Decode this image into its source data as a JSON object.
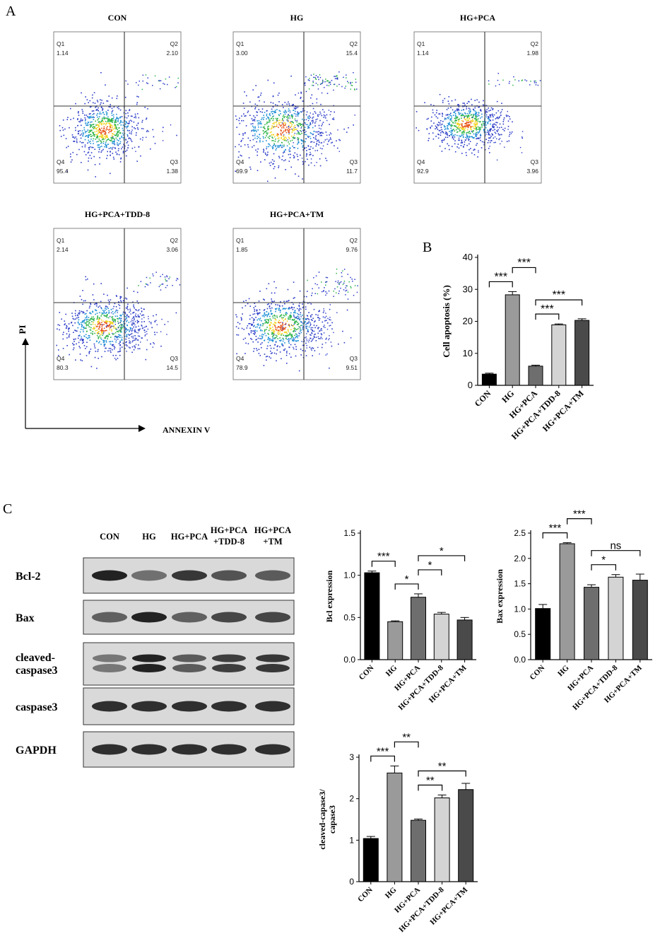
{
  "panel_letters": {
    "a": "A",
    "b": "B",
    "c": "C"
  },
  "flow": {
    "y_axis_label": "PI",
    "x_axis_label": "ANNEXIN V",
    "panels": [
      {
        "title": "CON",
        "q1": "1.14",
        "q2": "2.10",
        "q3": "1.38",
        "q4": "95.4",
        "q1_label": "Q1",
        "q2_label": "Q2",
        "q3_label": "Q3",
        "q4_label": "Q4"
      },
      {
        "title": "HG",
        "q1": "3.00",
        "q2": "15.4",
        "q3": "11.7",
        "q4": "69.9",
        "q1_label": "Q1",
        "q2_label": "Q2",
        "q3_label": "Q3",
        "q4_label": "Q4"
      },
      {
        "title": "HG+PCA",
        "q1": "1.14",
        "q2": "1.98",
        "q3": "3.96",
        "q4": "92.9",
        "q1_label": "Q1",
        "q2_label": "Q2",
        "q3_label": "Q3",
        "q4_label": "Q4"
      },
      {
        "title": "HG+PCA+TDD-8",
        "q1": "2.14",
        "q2": "3.06",
        "q3": "14.5",
        "q4": "80.3",
        "q1_label": "Q1",
        "q2_label": "Q2",
        "q3_label": "Q3",
        "q4_label": "Q4"
      },
      {
        "title": "HG+PCA+TM",
        "q1": "1.85",
        "q2": "9.76",
        "q3": "9.51",
        "q4": "78.9",
        "q1_label": "Q1",
        "q2_label": "Q2",
        "q3_label": "Q3",
        "q4_label": "Q4"
      }
    ]
  },
  "western": {
    "lanes": [
      {
        "line1": "CON",
        "line2": ""
      },
      {
        "line1": "HG",
        "line2": ""
      },
      {
        "line1": "HG+PCA",
        "line2": ""
      },
      {
        "line1": "HG+PCA",
        "line2": "+TDD-8"
      },
      {
        "line1": "HG+PCA",
        "line2": "+TM"
      }
    ],
    "rows": [
      {
        "label1": "Bcl-2",
        "label2": "",
        "levels": [
          0.95,
          0.4,
          0.8,
          0.6,
          0.55
        ],
        "double": false
      },
      {
        "label1": "Bax",
        "label2": "",
        "levels": [
          0.5,
          0.95,
          0.5,
          0.7,
          0.7
        ],
        "double": false
      },
      {
        "label1": "cleaved-",
        "label2": "caspase3",
        "levels": [
          0.35,
          0.95,
          0.55,
          0.75,
          0.8
        ],
        "double": true
      },
      {
        "label1": "caspase3",
        "label2": "",
        "levels": [
          0.85,
          0.85,
          0.85,
          0.85,
          0.85
        ],
        "double": false
      },
      {
        "label1": "GAPDH",
        "label2": "",
        "levels": [
          0.85,
          0.85,
          0.85,
          0.85,
          0.85
        ],
        "double": false
      }
    ]
  },
  "chart_data": [
    {
      "type": "bar",
      "panel": "B",
      "categories": [
        "CON",
        "HG",
        "HG+PCA",
        "HG+PCA+TDD-8",
        "HG+PCA+TM"
      ],
      "values": [
        3.5,
        28.3,
        6.0,
        18.9,
        20.3
      ],
      "errors": [
        0.3,
        1.0,
        0.3,
        0.3,
        0.5
      ],
      "colors": [
        "#000000",
        "#9a9a9a",
        "#6e6e6e",
        "#d4d4d4",
        "#4a4a4a"
      ],
      "ylabel": "Cell apoptosis (%)",
      "ylim": [
        0,
        40
      ],
      "yticks": [
        "0",
        "10",
        "20",
        "30",
        "40"
      ],
      "significance": [
        {
          "from": 0,
          "to": 1,
          "label": "***"
        },
        {
          "from": 1,
          "to": 2,
          "label": "***"
        },
        {
          "from": 2,
          "to": 3,
          "label": "***"
        },
        {
          "from": 2,
          "to": 4,
          "label": "***"
        }
      ]
    },
    {
      "type": "bar",
      "panel": "C-Bcl",
      "categories": [
        "CON",
        "HG",
        "HG+PCA",
        "HG+PCA+TDD-8",
        "HG+PCA+TM"
      ],
      "values": [
        1.03,
        0.45,
        0.74,
        0.54,
        0.47
      ],
      "errors": [
        0.02,
        0.01,
        0.04,
        0.02,
        0.03
      ],
      "colors": [
        "#000000",
        "#9a9a9a",
        "#6e6e6e",
        "#d4d4d4",
        "#4a4a4a"
      ],
      "ylabel": "Bcl expression",
      "ylim": [
        0,
        1.5
      ],
      "yticks": [
        "0.0",
        "0.5",
        "1.0",
        "1.5"
      ],
      "significance": [
        {
          "from": 0,
          "to": 1,
          "label": "***"
        },
        {
          "from": 1,
          "to": 2,
          "label": "*"
        },
        {
          "from": 2,
          "to": 3,
          "label": "*"
        },
        {
          "from": 2,
          "to": 4,
          "label": "*"
        }
      ]
    },
    {
      "type": "bar",
      "panel": "C-Bax",
      "categories": [
        "CON",
        "HG",
        "HG+PCA",
        "HG+PCA+TDD-8",
        "HG+PCA+TM"
      ],
      "values": [
        1.01,
        2.29,
        1.43,
        1.63,
        1.57
      ],
      "errors": [
        0.08,
        0.02,
        0.05,
        0.05,
        0.12
      ],
      "colors": [
        "#000000",
        "#9a9a9a",
        "#6e6e6e",
        "#d4d4d4",
        "#4a4a4a"
      ],
      "ylabel": "Bax expression",
      "ylim": [
        0,
        2.5
      ],
      "yticks": [
        "0.0",
        "0.5",
        "1.0",
        "1.5",
        "2.0",
        "2.5"
      ],
      "significance": [
        {
          "from": 0,
          "to": 1,
          "label": "***"
        },
        {
          "from": 1,
          "to": 2,
          "label": "***"
        },
        {
          "from": 2,
          "to": 3,
          "label": "*"
        },
        {
          "from": 2,
          "to": 4,
          "label": "ns"
        }
      ]
    },
    {
      "type": "bar",
      "panel": "C-cleaved",
      "categories": [
        "CON",
        "HG",
        "HG+PCA",
        "HG+PCA+TDD-8",
        "HG+PCA+TM"
      ],
      "values": [
        1.04,
        2.62,
        1.48,
        2.02,
        2.22
      ],
      "errors": [
        0.05,
        0.17,
        0.03,
        0.07,
        0.15
      ],
      "colors": [
        "#000000",
        "#9a9a9a",
        "#6e6e6e",
        "#d4d4d4",
        "#4a4a4a"
      ],
      "ylabel1": "cleaved-capase3/",
      "ylabel2": "capase3",
      "ylim": [
        0,
        3
      ],
      "yticks": [
        "0",
        "1",
        "2",
        "3"
      ],
      "significance": [
        {
          "from": 0,
          "to": 1,
          "label": "***"
        },
        {
          "from": 1,
          "to": 2,
          "label": "**"
        },
        {
          "from": 2,
          "to": 3,
          "label": "**"
        },
        {
          "from": 2,
          "to": 4,
          "label": "**"
        }
      ]
    }
  ]
}
